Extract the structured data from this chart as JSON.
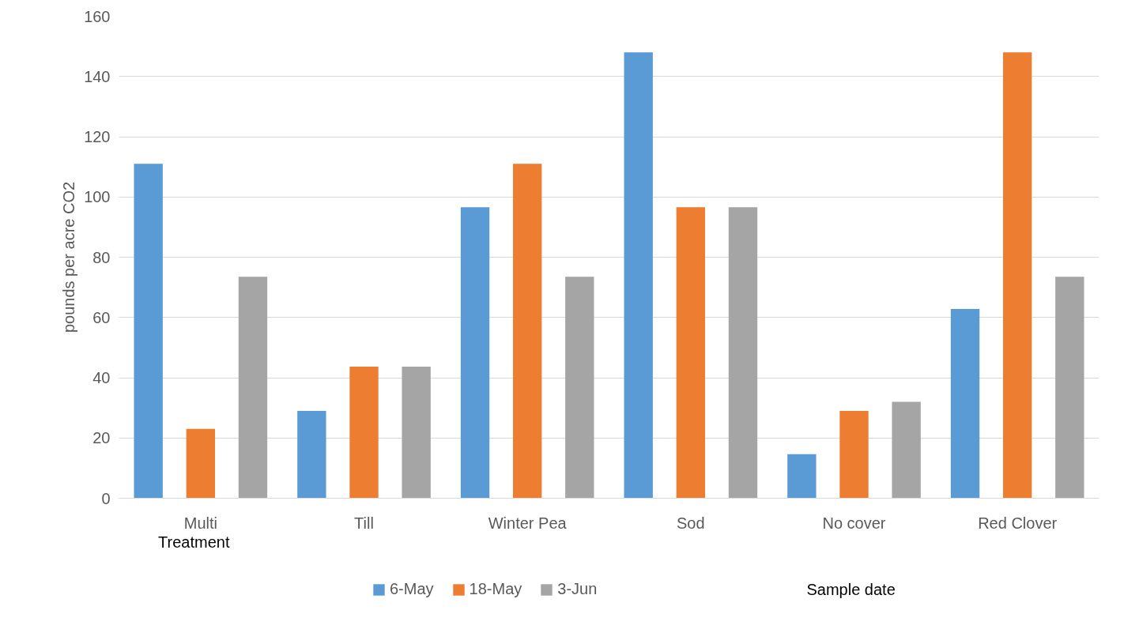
{
  "chart_data": {
    "type": "bar",
    "categories": [
      "Multi",
      "Till",
      "Winter Pea",
      "Sod",
      "No cover",
      "Red Clover"
    ],
    "series": [
      {
        "name": "6-May",
        "color": "#5b9bd5",
        "values": [
          111,
          29,
          96.6,
          148,
          14.6,
          62.8
        ]
      },
      {
        "name": "18-May",
        "color": "#ed7d31",
        "values": [
          23,
          43.7,
          111,
          96.6,
          29,
          148
        ]
      },
      {
        "name": "3-Jun",
        "color": "#a5a5a5",
        "values": [
          73.5,
          43.7,
          73.5,
          96.6,
          32,
          73.5
        ]
      }
    ],
    "xlabel": "Treatment",
    "ylabel": "pounds per acre CO2",
    "legend_title": "Sample date",
    "ylim": [
      0,
      160
    ],
    "yticks": [
      0,
      20,
      40,
      60,
      80,
      100,
      120,
      140,
      160
    ],
    "grid": "y",
    "legend": "bottom"
  }
}
